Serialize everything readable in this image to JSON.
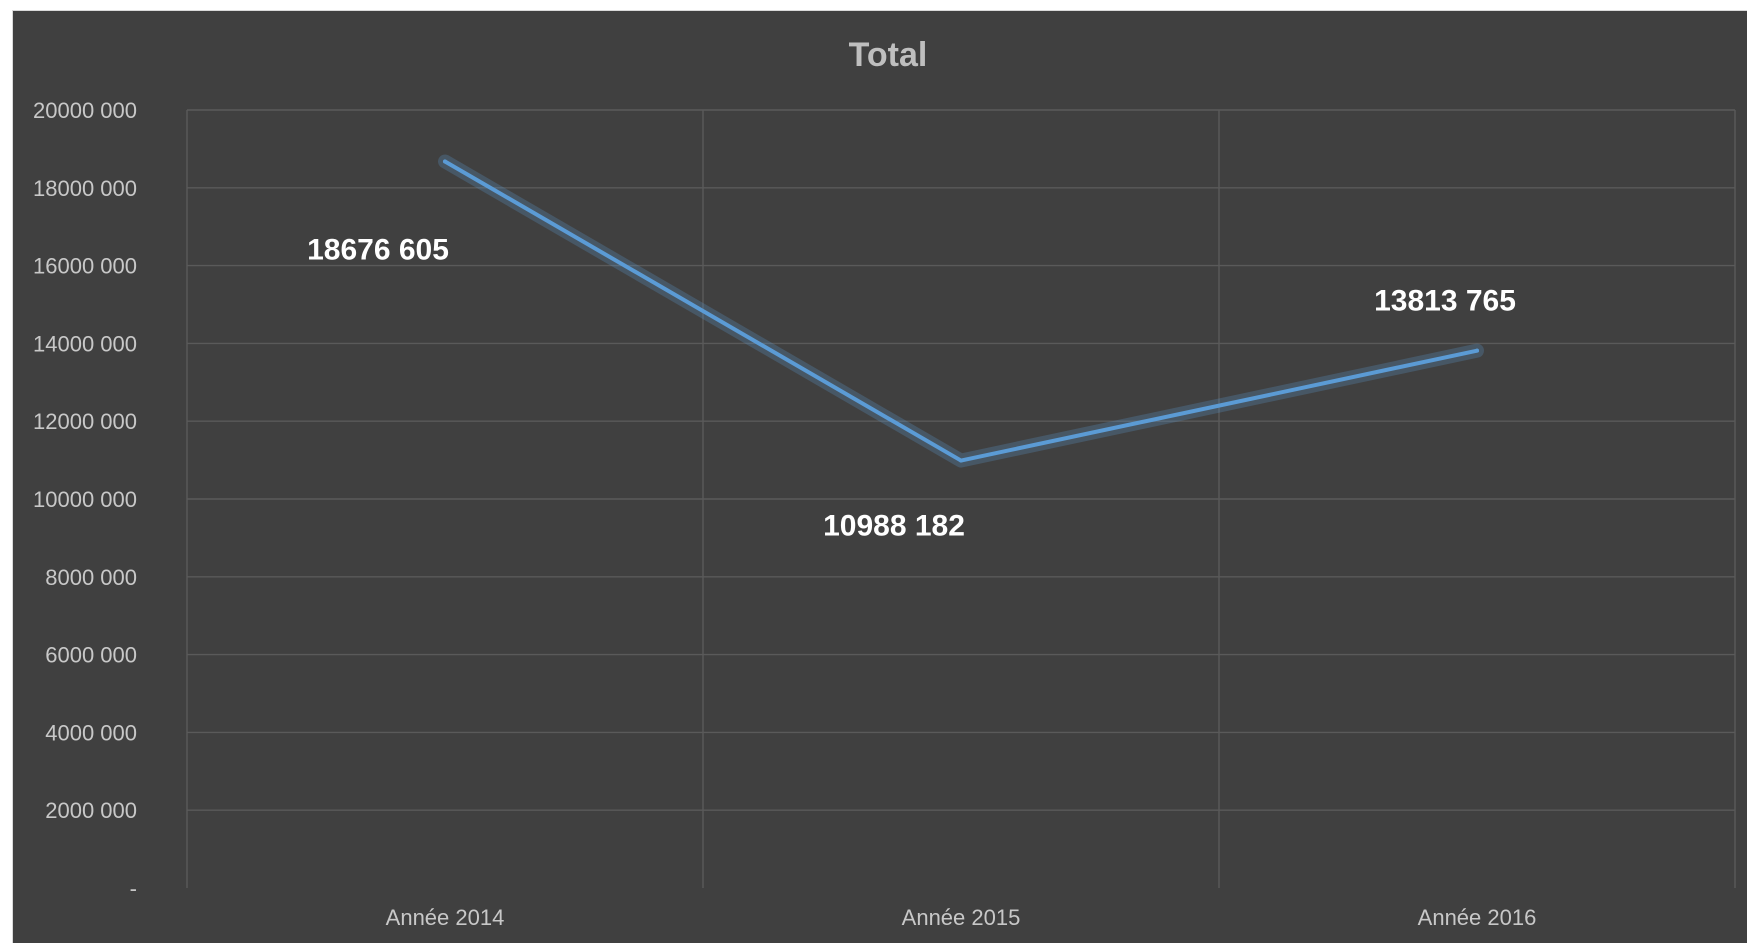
{
  "chart_data": {
    "type": "line",
    "title": "Total",
    "xlabel": "",
    "ylabel": "",
    "categories": [
      "Année 2014",
      "Année 2015",
      "Année 2016"
    ],
    "series": [
      {
        "values": [
          18676605,
          10988182,
          13813765
        ],
        "data_labels": [
          "18676 605",
          "10988 182",
          "13813 765"
        ]
      }
    ],
    "ylim": [
      0,
      20000000
    ],
    "y_ticks": [
      0,
      2000000,
      4000000,
      6000000,
      8000000,
      10000000,
      12000000,
      14000000,
      16000000,
      18000000,
      20000000
    ],
    "y_tick_labels": [
      "-",
      "2000 000",
      "4000 000",
      "6000 000",
      "8000 000",
      "10000 000",
      "12000 000",
      "14000 000",
      "16000 000",
      "18000 000",
      "20000 000"
    ],
    "grid": true,
    "legend": "none",
    "colors": {
      "background": "#404040",
      "line": "#5b9bd5",
      "grid": "#5a5a5a",
      "title": "#bfbfbf",
      "data_label": "#ffffff",
      "tick_label": "#c8c8c8"
    }
  }
}
